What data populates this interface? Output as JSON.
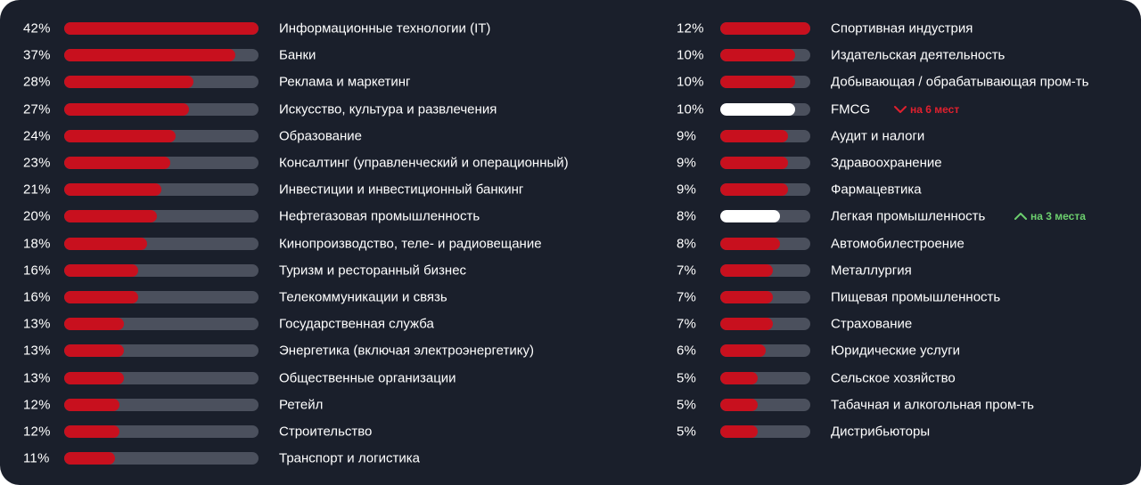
{
  "colors": {
    "background": "#1a1f2b",
    "bar_fill": "#c8101e",
    "bar_highlight": "#ffffff",
    "track": "#4b505d",
    "down": "#e0202e",
    "up": "#6ccf6e"
  },
  "chart_data": {
    "type": "bar",
    "orientation": "horizontal",
    "unit": "%",
    "xlim": [
      0,
      42
    ],
    "columns": [
      {
        "categories": [
          "Информационные технологии (IT)",
          "Банки",
          "Реклама и маркетинг",
          "Искусство, культура и развлечения",
          "Образование",
          "Консалтинг (управленческий и операционный)",
          "Инвестиции и инвестиционный банкинг",
          "Нефтегазовая промышленность",
          "Кинопроизводство, теле- и радиовещание",
          "Туризм и ресторанный бизнес",
          "Телекоммуникации и связь",
          "Государственная служба",
          "Энергетика (включая электроэнергетику)",
          "Общественные организации",
          "Ретейл",
          "Строительство",
          "Транспорт и логистика"
        ],
        "values": [
          42,
          37,
          28,
          27,
          24,
          23,
          21,
          20,
          18,
          16,
          16,
          13,
          13,
          13,
          12,
          12,
          11
        ],
        "value_labels": [
          "42%",
          "37%",
          "28%",
          "27%",
          "24%",
          "23%",
          "21%",
          "20%",
          "18%",
          "16%",
          "16%",
          "13%",
          "13%",
          "13%",
          "12%",
          "12%",
          "11%"
        ]
      },
      {
        "xlim": [
          0,
          12
        ],
        "categories": [
          "Спортивная индустрия",
          "Издательская деятельность",
          "Добывающая / обрабатывающая пром-ть",
          "FMCG",
          "Аудит и налоги",
          "Здравоохранение",
          "Фармацевтика",
          "Легкая промышленность",
          "Автомобилестроение",
          "Металлургия",
          "Пищевая промышленность",
          "Страхование",
          "Юридические услуги",
          "Сельское хозяйство",
          "Табачная и алкогольная пром-ть",
          "Дистрибьюторы"
        ],
        "values": [
          12,
          10,
          10,
          10,
          9,
          9,
          9,
          8,
          8,
          7,
          7,
          7,
          6,
          5,
          5,
          5
        ],
        "value_labels": [
          "12%",
          "10%",
          "10%",
          "10%",
          "9%",
          "9%",
          "9%",
          "8%",
          "8%",
          "7%",
          "7%",
          "7%",
          "6%",
          "5%",
          "5%",
          "5%"
        ],
        "highlighted": [
          3,
          7
        ],
        "annotations": [
          {
            "row": 3,
            "direction": "down",
            "text": "на 6 мест"
          },
          {
            "row": 7,
            "direction": "up",
            "text": "на 3 места"
          }
        ]
      }
    ]
  }
}
